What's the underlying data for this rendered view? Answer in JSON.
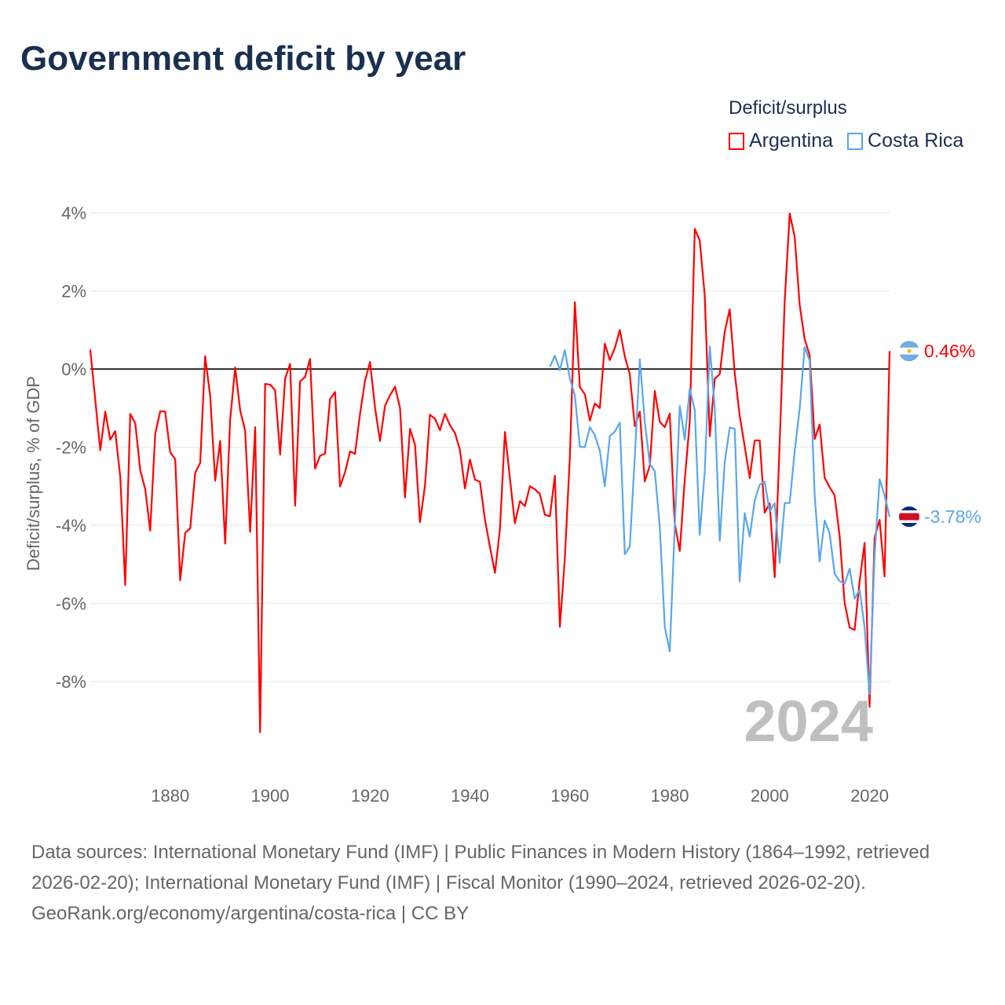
{
  "title": "Government deficit by year",
  "legend": {
    "title": "Deficit/surplus"
  },
  "footer": {
    "sources": "Data sources: International Monetary Fund (IMF) | Public Finances in Modern History (1864–1992, retrieved 2026-02-20); International Monetary Fund (IMF) | Fiscal Monitor (1990–2024, retrieved 2026-02-20).",
    "credit": "GeoRank.org/economy/argentina/costa-rica | CC BY"
  },
  "chart_data": {
    "type": "line",
    "title": "Government deficit by year",
    "xlabel": "",
    "ylabel": "Deficit/surplus, % of GDP",
    "year_label": "2024",
    "xlim": [
      1864,
      2024
    ],
    "ylim": [
      -9.5,
      4.2
    ],
    "xticks": [
      1880,
      1900,
      1920,
      1940,
      1960,
      1980,
      2000,
      2020
    ],
    "yticks": [
      4,
      2,
      0,
      -2,
      -4,
      -6,
      -8
    ],
    "ytick_labels": [
      "4%",
      "2%",
      "0%",
      "-2%",
      "-4%",
      "-6%",
      "-8%"
    ],
    "grid": true,
    "legend_position": "top-right",
    "series": [
      {
        "name": "Argentina",
        "color": "#ff0000",
        "end_label": "0.46%",
        "start_year": 1864,
        "values": [
          0.5,
          -0.8,
          -2.08,
          -1.09,
          -1.81,
          -1.59,
          -2.77,
          -5.53,
          -1.15,
          -1.39,
          -2.59,
          -3.08,
          -4.14,
          -1.66,
          -1.08,
          -1.09,
          -2.13,
          -2.31,
          -5.41,
          -4.19,
          -4.08,
          -2.66,
          -2.4,
          0.33,
          -0.69,
          -2.86,
          -1.84,
          -4.47,
          -1.31,
          0.04,
          -1.06,
          -1.58,
          -4.17,
          -1.49,
          -9.3,
          -0.38,
          -0.4,
          -0.54,
          -2.19,
          -0.25,
          0.13,
          -3.5,
          -0.32,
          -0.2,
          0.26,
          -2.55,
          -2.22,
          -2.17,
          -0.77,
          -0.59,
          -3.01,
          -2.64,
          -2.11,
          -2.17,
          -1.14,
          -0.3,
          0.18,
          -1.0,
          -1.84,
          -0.94,
          -0.67,
          -0.45,
          -1.0,
          -3.29,
          -1.53,
          -1.94,
          -3.92,
          -2.98,
          -1.17,
          -1.27,
          -1.57,
          -1.15,
          -1.44,
          -1.64,
          -2.07,
          -3.06,
          -2.32,
          -2.83,
          -2.89,
          -3.85,
          -4.55,
          -5.22,
          -4.11,
          -1.61,
          -2.81,
          -3.95,
          -3.38,
          -3.51,
          -3.0,
          -3.08,
          -3.2,
          -3.73,
          -3.77,
          -2.73,
          -6.6,
          -4.85,
          -2.25,
          1.71,
          -0.46,
          -0.65,
          -1.32,
          -0.88,
          -1.0,
          0.65,
          0.23,
          0.54,
          1.0,
          0.32,
          -0.13,
          -1.46,
          -1.09,
          -2.88,
          -2.47,
          -0.56,
          -1.35,
          -1.49,
          -1.14,
          -3.96,
          -4.66,
          -2.84,
          -1.35,
          3.59,
          3.29,
          1.88,
          -1.72,
          -0.25,
          -0.13,
          0.95,
          1.53,
          -0.11,
          -1.19,
          -1.98,
          -2.79,
          -1.83,
          -1.83,
          -3.68,
          -3.44,
          -5.33,
          -1.9,
          1.73,
          3.98,
          3.39,
          1.64,
          0.77,
          0.35,
          -1.79,
          -1.42,
          -2.78,
          -3.03,
          -3.23,
          -4.28,
          -5.98,
          -6.62,
          -6.68,
          -5.44,
          -4.45,
          -8.65,
          -4.32,
          -3.86,
          -5.31,
          0.46
        ]
      },
      {
        "name": "Costa Rica",
        "color": "#5aa6ec",
        "end_label": "-3.78%",
        "start_year": 1956,
        "values": [
          0.06,
          0.34,
          -0.03,
          0.48,
          -0.24,
          -0.68,
          -1.99,
          -2.0,
          -1.49,
          -1.69,
          -2.1,
          -3.0,
          -1.72,
          -1.6,
          -1.37,
          -4.74,
          -4.55,
          -2.25,
          0.25,
          -1.35,
          -2.43,
          -2.62,
          -4.03,
          -6.6,
          -7.23,
          -4.03,
          -0.94,
          -1.81,
          -0.5,
          -1.06,
          -4.25,
          -2.62,
          0.58,
          -0.98,
          -4.4,
          -2.39,
          -1.5,
          -1.53,
          -5.44,
          -3.69,
          -4.29,
          -3.37,
          -2.96,
          -2.88,
          -3.65,
          -3.43,
          -4.96,
          -3.43,
          -3.43,
          -2.11,
          -1.01,
          0.56,
          0.22,
          -3.23,
          -4.93,
          -3.88,
          -4.21,
          -5.24,
          -5.43,
          -5.5,
          -5.11,
          -5.88,
          -5.65,
          -6.62,
          -8.33,
          -4.78,
          -2.82,
          -3.23,
          -3.78
        ]
      }
    ]
  }
}
